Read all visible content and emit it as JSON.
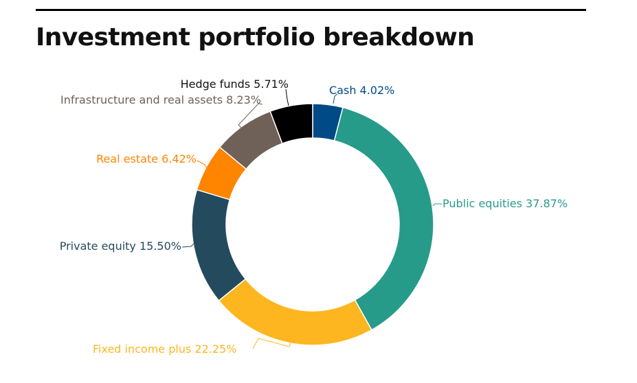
{
  "chart_data": {
    "type": "pie",
    "variant": "donut",
    "title": "Investment portfolio breakdown",
    "legend": "none (direct slice labels)",
    "unit": "%",
    "slices": [
      {
        "label": "Cash",
        "value": 4.02,
        "display": "Cash 4.02%",
        "color": "#004a87"
      },
      {
        "label": "Public equities",
        "value": 37.87,
        "display": "Public equities 37.87%",
        "color": "#279b89"
      },
      {
        "label": "Fixed income plus",
        "value": 22.25,
        "display": "Fixed income plus 22.25%",
        "color": "#fdb61f"
      },
      {
        "label": "Private equity",
        "value": 15.5,
        "display": "Private equity 15.50%",
        "color": "#244a5d"
      },
      {
        "label": "Real estate",
        "value": 6.42,
        "display": "Real estate 6.42%",
        "color": "#ff8400"
      },
      {
        "label": "Infrastructure and real assets",
        "value": 8.23,
        "display": "Infrastructure and real assets 8.23%",
        "color": "#6f6157"
      },
      {
        "label": "Hedge funds",
        "value": 5.71,
        "display": "Hedge funds 5.71%",
        "color": "#000000"
      }
    ]
  }
}
